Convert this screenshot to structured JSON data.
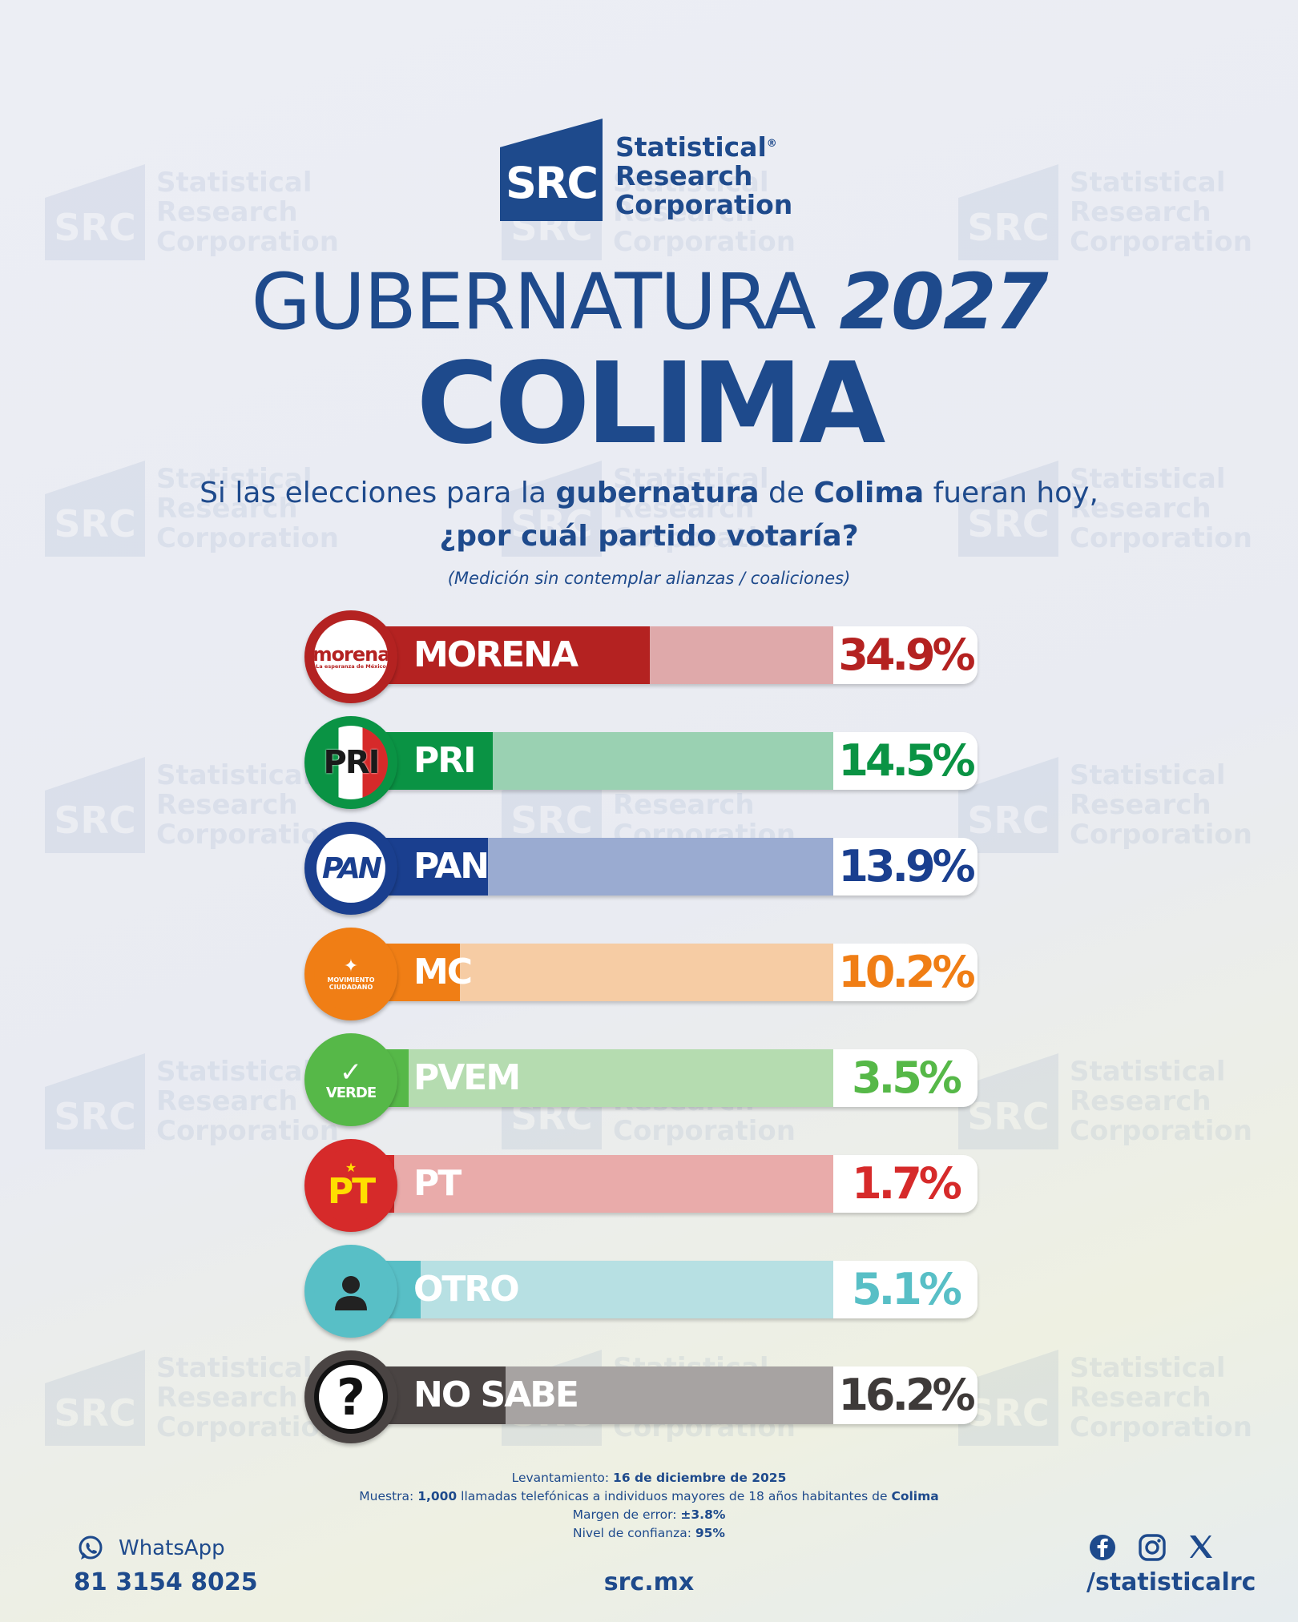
{
  "brand": {
    "logo_mark": "SRC",
    "name_line1": "Statistical",
    "name_line2": "Research",
    "name_line3": "Corporation",
    "reg": "®"
  },
  "title": {
    "main": "GUBERNATURA",
    "year": "2027",
    "state": "COLIMA"
  },
  "question": {
    "p1": "Si las elecciones para la ",
    "b1": "gubernatura",
    "p2": " de ",
    "b2": "Colima",
    "p3": " fueran hoy,",
    "line2": "¿por cuál partido votaría?",
    "note": "(Medición sin contemplar alianzas / coaliciones)"
  },
  "chart_data": {
    "type": "bar",
    "orientation": "horizontal",
    "categories": [
      "MORENA",
      "PRI",
      "PAN",
      "MC",
      "PVEM",
      "PT",
      "OTRO",
      "NO SABE"
    ],
    "values": [
      34.9,
      14.5,
      13.9,
      10.2,
      3.5,
      1.7,
      5.1,
      16.2
    ],
    "value_labels": [
      "34.9%",
      "14.5%",
      "13.9%",
      "10.2%",
      "3.5%",
      "1.7%",
      "5.1%",
      "16.2%"
    ],
    "colors": [
      "#b42221",
      "#0a9344",
      "#1a3f8f",
      "#f07e15",
      "#56b848",
      "#d62a2a",
      "#58bfc6",
      "#4a4443"
    ],
    "light_colors": [
      "#dfa9aa",
      "#9ad1b2",
      "#9aabd1",
      "#f6cca4",
      "#b5dcb0",
      "#e9abaa",
      "#b7e0e3",
      "#a7a3a2"
    ],
    "logo_text": {
      "morena": "morena",
      "morena_sub": "La esperanza de México",
      "pri": "PRI",
      "pan": "PAN",
      "mc": "MOVIMIENTO CIUDADANO",
      "pvem": "VERDE",
      "pt": "PT",
      "nosabe": "?"
    },
    "xlim": [
      0,
      100
    ]
  },
  "footer": {
    "lev_label": "Levantamiento: ",
    "lev_value": "16 de diciembre de 2025",
    "muestra_label": "Muestra: ",
    "muestra_value": "1,000",
    "muestra_text": " llamadas telefónicas a individuos mayores de 18 años habitantes de ",
    "muestra_state": "Colima",
    "margen_label": "Margen de error: ",
    "margen_value": "±3.8%",
    "nivel_label": "Nivel de confianza: ",
    "nivel_value": "95%"
  },
  "contact": {
    "whatsapp_label": "WhatsApp",
    "phone": "81 3154 8025",
    "site": "src.mx",
    "handle": "/statisticalrc",
    "icons": [
      "whatsapp-icon",
      "facebook-icon",
      "instagram-icon",
      "x-icon"
    ]
  }
}
